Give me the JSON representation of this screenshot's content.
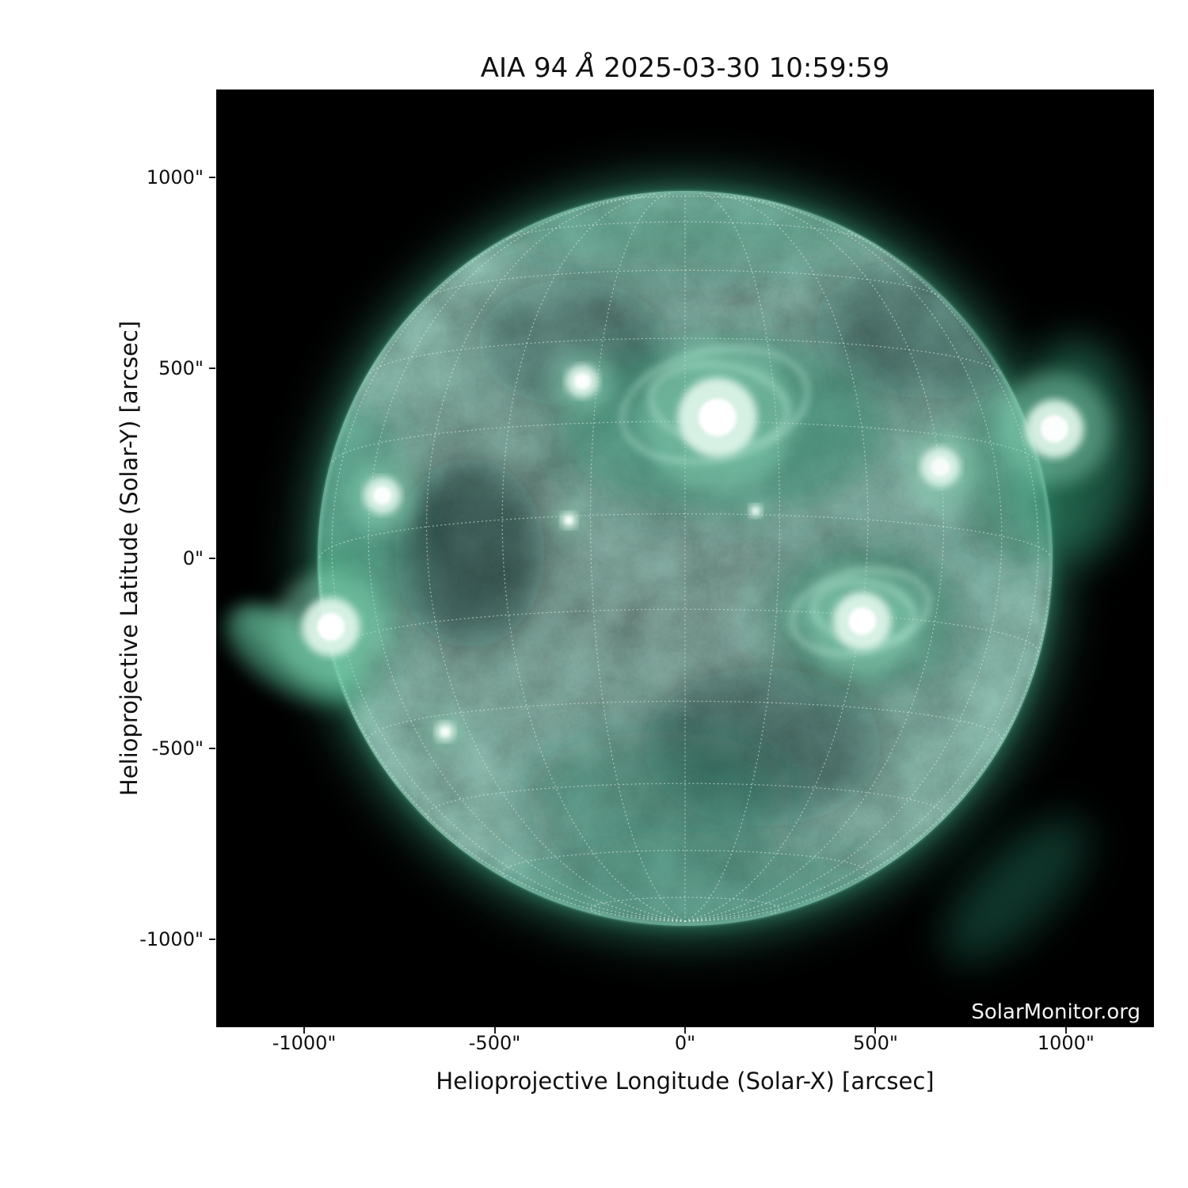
{
  "title": {
    "full": "AIA 94 Å 2025-03-30 10:59:59",
    "prefix": "AIA 94 ",
    "angstrom": "Å",
    "suffix": " 2025-03-30 10:59:59"
  },
  "watermark": "SolarMonitor.org",
  "axes": {
    "xlabel": "Helioprojective Longitude (Solar-X) [arcsec]",
    "ylabel": "Helioprojective Latitude (Solar-Y) [arcsec]",
    "x_ticks": [
      {
        "value": -1000,
        "label": "-1000\""
      },
      {
        "value": -500,
        "label": "-500\""
      },
      {
        "value": 0,
        "label": "0\""
      },
      {
        "value": 500,
        "label": "500\""
      },
      {
        "value": 1000,
        "label": "1000\""
      }
    ],
    "y_ticks": [
      {
        "value": 1000,
        "label": "1000\""
      },
      {
        "value": 500,
        "label": "500\""
      },
      {
        "value": 0,
        "label": "0\""
      },
      {
        "value": -500,
        "label": "-500\""
      },
      {
        "value": -1000,
        "label": "-1000\""
      }
    ]
  },
  "chart_data": {
    "type": "heatmap",
    "title": "AIA 94 Å 2025-03-30 10:59:59",
    "description": "SDO/AIA 94 Å full-disk EUV solar image in green colormap with Stonyhurst heliographic grid overlay",
    "instrument": "AIA",
    "wavelength": "94 Å",
    "observed": "2025-03-30 10:59:59",
    "xlabel": "Helioprojective Longitude (Solar-X) [arcsec]",
    "ylabel": "Helioprojective Latitude (Solar-Y) [arcsec]",
    "xlim": [
      -1231,
      1231
    ],
    "ylim": [
      -1231,
      1231
    ],
    "solar_radius_arcsec": 960,
    "grid": {
      "projection": "stonyhurst",
      "spacing_deg": 15,
      "b0_deg": -7,
      "style": "dotted"
    },
    "active_regions": [
      {
        "name": "east-limb-south-AR",
        "x": -930,
        "y": -180,
        "size": 70,
        "intensity": "very-bright",
        "ray_fan": true
      },
      {
        "name": "east-limb-north-AR",
        "x": -795,
        "y": 165,
        "size": 45,
        "intensity": "bright"
      },
      {
        "name": "north-central-complex",
        "x": 85,
        "y": 370,
        "size": 95,
        "intensity": "very-bright",
        "loops": true
      },
      {
        "name": "north-mid-AR",
        "x": -270,
        "y": 465,
        "size": 40,
        "intensity": "bright"
      },
      {
        "name": "west-central-AR",
        "x": 465,
        "y": -165,
        "size": 70,
        "intensity": "very-bright",
        "loops": true
      },
      {
        "name": "west-limb-AR",
        "x": 970,
        "y": 340,
        "size": 70,
        "intensity": "bright"
      },
      {
        "name": "west-mid-AR",
        "x": 670,
        "y": 240,
        "size": 48,
        "intensity": "moderate"
      },
      {
        "name": "south-east-spot",
        "x": -630,
        "y": -455,
        "size": 24,
        "intensity": "moderate"
      },
      {
        "name": "central-east-spot",
        "x": -305,
        "y": 100,
        "size": 20,
        "intensity": "moderate"
      },
      {
        "name": "central-spot",
        "x": 185,
        "y": 125,
        "size": 16,
        "intensity": "faint"
      }
    ]
  },
  "colors": {
    "page_background": "#ffffff",
    "plot_background": "#000000",
    "text": "#101010",
    "disk_center": "#0d3629",
    "disk_mid": "#15523e",
    "disk_limb_inner": "#3f9e7f",
    "limb_rim": "#86d6b8",
    "grid_line": "#e6eee6",
    "active_region_halo": "#8fd9bb",
    "active_region_core": "#ffffff",
    "watermark_color": "#f4f4f4"
  }
}
